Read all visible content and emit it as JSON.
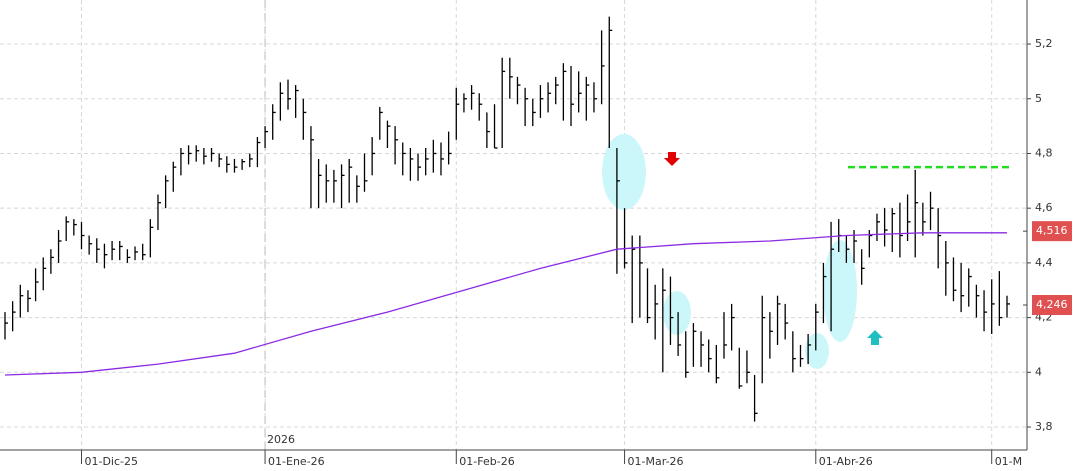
{
  "chart_data": {
    "type": "ohlc",
    "categories": [
      null,
      null,
      null,
      null,
      null,
      null,
      null,
      null,
      null,
      null,
      null,
      null,
      null,
      null,
      null,
      null,
      null,
      null,
      null,
      null,
      null,
      null,
      null,
      null,
      null,
      null,
      null,
      null,
      null,
      null,
      null,
      null,
      null,
      null,
      null,
      null,
      null,
      null,
      null,
      null,
      null,
      null,
      null,
      null,
      null,
      null,
      null,
      null,
      null,
      null,
      null,
      null,
      null,
      null,
      null,
      null,
      null,
      null,
      null,
      null,
      null,
      null,
      null,
      null,
      null,
      null,
      null,
      null,
      null,
      null,
      null,
      null,
      null,
      null,
      null,
      null,
      null,
      null,
      null,
      null,
      null,
      null,
      null,
      null,
      null,
      null,
      null,
      null,
      null,
      null,
      null,
      null,
      null,
      null,
      null,
      null,
      null,
      null,
      null,
      null,
      null,
      null,
      null,
      null,
      null,
      null,
      null,
      null,
      null,
      null,
      null,
      null,
      null,
      null,
      null,
      null,
      null,
      null,
      null,
      null,
      null,
      null,
      null,
      null,
      null,
      null,
      null,
      null,
      null,
      null,
      null,
      null
    ],
    "high": [
      4.22,
      4.26,
      4.32,
      4.3,
      4.38,
      4.42,
      4.45,
      4.52,
      4.57,
      4.56,
      4.55,
      4.5,
      4.49,
      4.47,
      4.48,
      4.48,
      4.45,
      4.46,
      4.47,
      4.56,
      4.65,
      4.72,
      4.77,
      4.82,
      4.83,
      4.83,
      4.82,
      4.82,
      4.8,
      4.79,
      4.78,
      4.78,
      4.8,
      4.86,
      4.9,
      4.98,
      5.06,
      5.07,
      5.05,
      5.0,
      4.9,
      4.78,
      4.76,
      4.74,
      4.76,
      4.78,
      4.72,
      4.8,
      4.86,
      4.97,
      4.92,
      4.9,
      4.84,
      4.82,
      4.8,
      4.82,
      4.85,
      4.84,
      4.88,
      5.04,
      5.02,
      5.05,
      5.02,
      4.95,
      4.98,
      5.15,
      5.15,
      5.08,
      5.04,
      5.0,
      5.05,
      5.06,
      5.08,
      5.13,
      5.12,
      5.1,
      5.08,
      5.06,
      5.25,
      5.3,
      4.82,
      4.6,
      4.5,
      4.5,
      4.38,
      4.32,
      4.38,
      4.35,
      4.22,
      4.15,
      4.18,
      4.15,
      4.12,
      4.1,
      4.22,
      4.25,
      4.09,
      4.08,
      3.99,
      4.28,
      4.22,
      4.28,
      4.25,
      4.15,
      4.1,
      4.14,
      4.25,
      4.4,
      4.55,
      4.56,
      4.5,
      4.52,
      4.45,
      4.52,
      4.58,
      4.6,
      4.6,
      4.62,
      4.65,
      4.74,
      4.62,
      4.66,
      4.6,
      4.48,
      4.42,
      4.4,
      4.38,
      4.32,
      4.3,
      4.34,
      4.37,
      4.28
    ],
    "low": [
      4.12,
      4.15,
      4.2,
      4.22,
      4.26,
      4.3,
      4.36,
      4.4,
      4.48,
      4.5,
      4.45,
      4.43,
      4.4,
      4.38,
      4.41,
      4.41,
      4.4,
      4.41,
      4.41,
      4.42,
      4.52,
      4.6,
      4.66,
      4.72,
      4.76,
      4.77,
      4.76,
      4.77,
      4.75,
      4.73,
      4.73,
      4.74,
      4.75,
      4.75,
      4.82,
      4.85,
      4.92,
      4.96,
      4.93,
      4.85,
      4.6,
      4.6,
      4.62,
      4.62,
      4.6,
      4.62,
      4.62,
      4.66,
      4.72,
      4.85,
      4.82,
      4.76,
      4.72,
      4.7,
      4.7,
      4.72,
      4.73,
      4.72,
      4.76,
      4.85,
      4.95,
      4.96,
      4.92,
      4.82,
      4.82,
      4.82,
      5.0,
      4.98,
      4.9,
      4.9,
      4.93,
      4.95,
      4.98,
      4.92,
      4.9,
      4.95,
      4.92,
      4.95,
      4.98,
      4.82,
      4.36,
      4.38,
      4.18,
      4.2,
      4.18,
      4.12,
      4.0,
      4.1,
      4.06,
      3.98,
      4.02,
      4.02,
      4.0,
      3.96,
      4.05,
      4.08,
      3.94,
      3.96,
      3.82,
      3.96,
      4.05,
      4.1,
      4.12,
      4.0,
      4.02,
      4.03,
      4.08,
      4.18,
      4.15,
      4.44,
      4.4,
      4.4,
      4.32,
      4.42,
      4.48,
      4.46,
      4.44,
      4.42,
      4.48,
      4.42,
      4.5,
      4.52,
      4.38,
      4.28,
      4.26,
      4.22,
      4.24,
      4.2,
      4.15,
      4.14,
      4.17,
      4.2
    ],
    "close": [
      4.18,
      4.22,
      4.28,
      4.27,
      4.33,
      4.38,
      4.42,
      4.48,
      4.55,
      4.54,
      4.5,
      4.47,
      4.45,
      4.43,
      4.45,
      4.46,
      4.42,
      4.44,
      4.43,
      4.53,
      4.62,
      4.7,
      4.75,
      4.8,
      4.8,
      4.81,
      4.79,
      4.8,
      4.78,
      4.76,
      4.75,
      4.77,
      4.78,
      4.84,
      4.88,
      4.95,
      5.02,
      5.0,
      5.03,
      4.95,
      4.85,
      4.72,
      4.7,
      4.7,
      4.72,
      4.75,
      4.68,
      4.7,
      4.8,
      4.95,
      4.9,
      4.85,
      4.8,
      4.78,
      4.75,
      4.78,
      4.8,
      4.78,
      4.8,
      4.98,
      5.0,
      5.02,
      4.98,
      4.88,
      4.82,
      5.1,
      5.08,
      5.05,
      5.0,
      4.95,
      5.0,
      5.02,
      5.05,
      5.1,
      4.98,
      5.02,
      5.05,
      5.0,
      5.12,
      5.25,
      4.7,
      4.4,
      4.45,
      4.4,
      4.2,
      4.25,
      4.3,
      4.2,
      4.1,
      4.0,
      4.15,
      4.1,
      4.05,
      3.98,
      4.1,
      4.2,
      3.95,
      4.0,
      3.85,
      4.2,
      4.15,
      4.25,
      4.18,
      4.05,
      4.05,
      4.1,
      4.22,
      4.35,
      4.45,
      4.5,
      4.45,
      4.48,
      4.38,
      4.5,
      4.55,
      4.52,
      4.58,
      4.5,
      4.55,
      4.62,
      4.55,
      4.6,
      4.5,
      4.4,
      4.3,
      4.28,
      4.35,
      4.28,
      4.22,
      4.25,
      4.2,
      4.25
    ],
    "bar_color": "#000000",
    "moving_average": {
      "color": "#8a2be2",
      "x": [
        0,
        10,
        20,
        30,
        40,
        50,
        60,
        70,
        80,
        90,
        100,
        110,
        120,
        131
      ],
      "values": [
        3.99,
        4.0,
        4.03,
        4.07,
        4.15,
        4.22,
        4.3,
        4.38,
        4.45,
        4.47,
        4.48,
        4.5,
        4.51,
        4.51
      ]
    },
    "price_labels": [
      {
        "value": 4.516,
        "label": "4,516"
      },
      {
        "value": 4.246,
        "label": "4,246"
      }
    ],
    "price_label_color": "#e05050",
    "resistance": {
      "value": 4.75,
      "color": "#22dd22"
    },
    "ylim": [
      3.716,
      5.361
    ],
    "yticks": [
      {
        "value": 3.8,
        "label": "3,8"
      },
      4,
      {
        "value": 4.2,
        "label": "4,2"
      },
      {
        "value": 4.4,
        "label": "4,4"
      },
      {
        "value": 4.6,
        "label": "4,6"
      },
      {
        "value": 4.8,
        "label": "4,8"
      },
      5,
      {
        "value": 5.2,
        "label": "5,2"
      }
    ],
    "xticks": [
      {
        "value": 10,
        "label": "01-Dic-25"
      },
      {
        "value": 34,
        "label": "01-Ene-26"
      },
      {
        "value": 59,
        "label": "01-Feb-26"
      },
      {
        "value": 81,
        "label": "01-Mar-26"
      },
      {
        "value": 106,
        "label": "01-Abr-26"
      },
      {
        "value": 129,
        "label": "01-M"
      }
    ],
    "year_marker": {
      "value": 34,
      "label": "2026"
    },
    "grid": true
  }
}
